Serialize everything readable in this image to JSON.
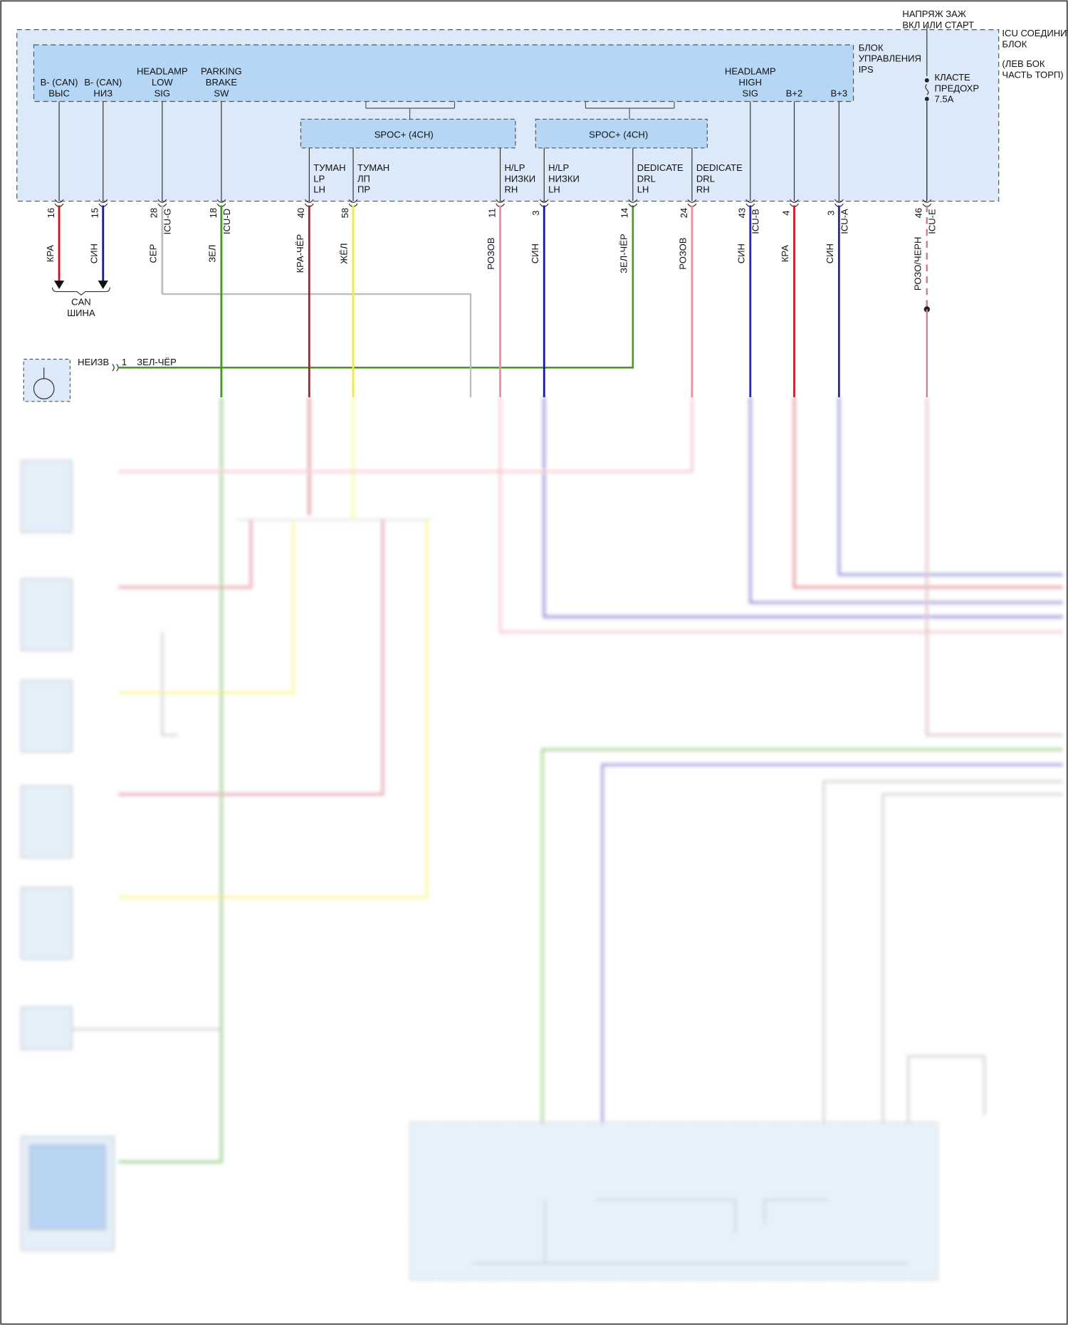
{
  "supply": [
    "НАПРЯЖ ЗАЖ",
    "ВКЛ ИЛИ СТАРТ"
  ],
  "icu_block": [
    "ICU СОЕДИНИТ",
    "БЛОК",
    "(ЛЕВ БОК",
    "ЧАСТЬ ТОРП)"
  ],
  "ips_block": [
    "БЛОК",
    "УПРАВЛЕНИЯ",
    "IPS"
  ],
  "fuse": [
    "КЛАСТЕ",
    "ПРЕДОХР",
    "7.5A"
  ],
  "spoc": [
    "SPOC+ (4CH)",
    "SPOC+ (4CH)"
  ],
  "terminals": [
    {
      "label": [
        "B- (CAN)",
        "ВЫС"
      ],
      "pin": "16",
      "wire": "КРА",
      "color": "#c8141c"
    },
    {
      "label": [
        "B- (CAN)",
        "НИЗ"
      ],
      "pin": "15",
      "wire": "СИН",
      "color": "#1a1aa8"
    },
    {
      "label": [
        "HEADLAMP",
        "LOW",
        "SIG"
      ],
      "pin": "28",
      "connector": "ICU-G",
      "wire": "СЕР",
      "color": "#bdbdbd"
    },
    {
      "label": [
        "PARKING",
        "BRAKE",
        "SW"
      ],
      "pin": "18",
      "connector": "ICU-D",
      "wire": "ЗЕЛ",
      "color": "#3c9a1c"
    },
    {
      "label": [
        "ТУМАН",
        "LP",
        "LH"
      ],
      "pin": "40",
      "wire": "КРА-ЧЁР",
      "color": "#b0202a"
    },
    {
      "label": [
        "ТУМАН",
        "ЛП",
        "ПР"
      ],
      "pin": "58",
      "wire": "ЖЁЛ",
      "color": "#f2ee2a"
    },
    {
      "label": [
        "H/LP",
        "НИЗКИ",
        "RH"
      ],
      "pin": "11",
      "wire": "РОЗОВ",
      "color": "#ee8fa0"
    },
    {
      "label": [
        "H/LP",
        "НИЗКИ",
        "LH"
      ],
      "pin": "3",
      "wire": "СИН",
      "color": "#1a1aa8"
    },
    {
      "label": [
        "DEDICATE",
        "DRL",
        "LH"
      ],
      "pin": "14",
      "wire": "ЗЕЛ-ЧЁР",
      "color": "#4a9a22"
    },
    {
      "label": [
        "DEDICATE",
        "DRL",
        "RH"
      ],
      "pin": "24",
      "wire": "РОЗОВ",
      "color": "#ee8fa0"
    },
    {
      "label": [
        "HEADLAMP",
        "HIGH",
        "SIG"
      ],
      "pin": "43",
      "connector": "ICU-B",
      "wire": "СИН",
      "color": "#2a2ab0"
    },
    {
      "label": [
        "B+2"
      ],
      "pin": "4",
      "wire": "КРА",
      "color": "#d0202a"
    },
    {
      "label": [
        "B+3"
      ],
      "pin": "3",
      "connector": "ICU-A",
      "wire": "СИН",
      "color": "#2a2ab0"
    },
    {
      "pin": "46",
      "connector": "ICU-E",
      "wire": "РОЗО/ЧЕРН",
      "color": "#c08890"
    }
  ],
  "can_bus": [
    "CAN",
    "ШИНА"
  ],
  "unknown": {
    "label": "НЕИЗВ",
    "pin": "1",
    "wire": "ЗЕЛ-ЧЁР"
  }
}
